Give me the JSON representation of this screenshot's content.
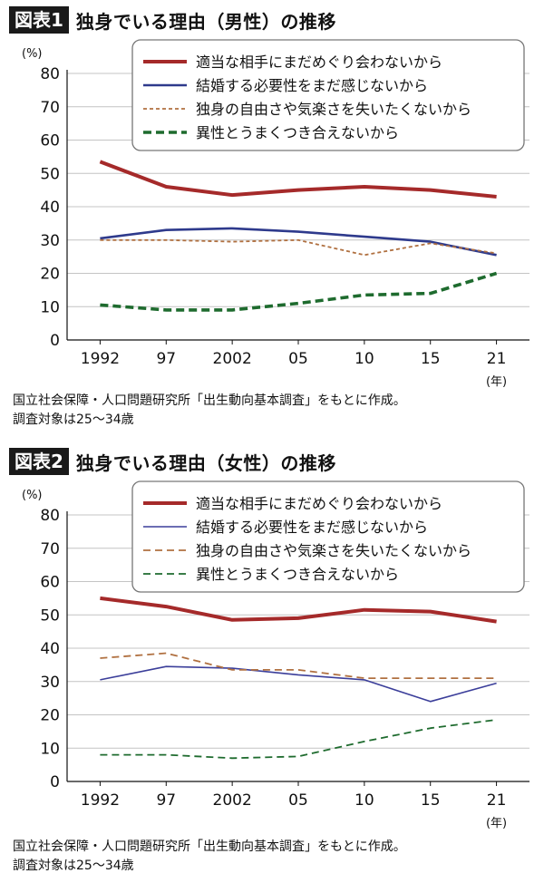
{
  "chart_data": [
    {
      "type": "line",
      "fig_label": "図表1",
      "title": "独身でいる理由（男性）の推移",
      "ylabel": "(%)",
      "xunit": "(年)",
      "ylim": [
        0,
        80
      ],
      "yticks": [
        0,
        10,
        20,
        30,
        40,
        50,
        60,
        70,
        80
      ],
      "categories": [
        "1992",
        "97",
        "2002",
        "05",
        "10",
        "15",
        "21"
      ],
      "grid": true,
      "legend_position": "top-right",
      "series": [
        {
          "name": "適当な相手にまだめぐり会わないから",
          "values": [
            53.5,
            46.0,
            43.5,
            45.0,
            46.0,
            45.0,
            43.0
          ],
          "color": "#a52a2a",
          "style": "thick-solid"
        },
        {
          "name": "結婚する必要性をまだ感じないから",
          "values": [
            30.5,
            33.0,
            33.5,
            32.5,
            31.0,
            29.5,
            25.5
          ],
          "color": "#2e3a8c",
          "style": "solid"
        },
        {
          "name": "独身の自由さや気楽さを失いたくないから",
          "values": [
            30.0,
            30.0,
            29.5,
            30.0,
            25.5,
            29.0,
            26.0
          ],
          "color": "#b07040",
          "style": "dotted"
        },
        {
          "name": "異性とうまくつき合えないから",
          "values": [
            10.5,
            9.0,
            9.0,
            11.0,
            13.5,
            14.0,
            20.0
          ],
          "color": "#1e6b2e",
          "style": "thick-dashed"
        }
      ],
      "source_lines": [
        "国立社会保障・人口問題研究所「出生動向基本調査」をもとに作成。",
        "調査対象は25〜34歳"
      ]
    },
    {
      "type": "line",
      "fig_label": "図表2",
      "title": "独身でいる理由（女性）の推移",
      "ylabel": "(%)",
      "xunit": "(年)",
      "ylim": [
        0,
        80
      ],
      "yticks": [
        0,
        10,
        20,
        30,
        40,
        50,
        60,
        70,
        80
      ],
      "categories": [
        "1992",
        "97",
        "2002",
        "05",
        "10",
        "15",
        "21"
      ],
      "grid": true,
      "legend_position": "top-right",
      "series": [
        {
          "name": "適当な相手にまだめぐり会わないから",
          "values": [
            55.0,
            52.5,
            48.5,
            49.0,
            51.5,
            51.0,
            48.0
          ],
          "color": "#a52a2a",
          "style": "thick-solid"
        },
        {
          "name": "結婚する必要性をまだ感じないから",
          "values": [
            30.5,
            34.5,
            34.0,
            32.0,
            30.5,
            24.0,
            29.5
          ],
          "color": "#3b3e9a",
          "style": "thin-solid"
        },
        {
          "name": "独身の自由さや気楽さを失いたくないから",
          "values": [
            37.0,
            38.5,
            33.5,
            33.5,
            31.0,
            31.0,
            31.0
          ],
          "color": "#b07040",
          "style": "dashed"
        },
        {
          "name": "異性とうまくつき合えないから",
          "values": [
            8.0,
            8.0,
            7.0,
            7.5,
            12.0,
            16.0,
            18.5
          ],
          "color": "#1e6b2e",
          "style": "dashed"
        }
      ],
      "source_lines": [
        "国立社会保障・人口問題研究所「出生動向基本調査」をもとに作成。",
        "調査対象は25〜34歳"
      ]
    }
  ]
}
